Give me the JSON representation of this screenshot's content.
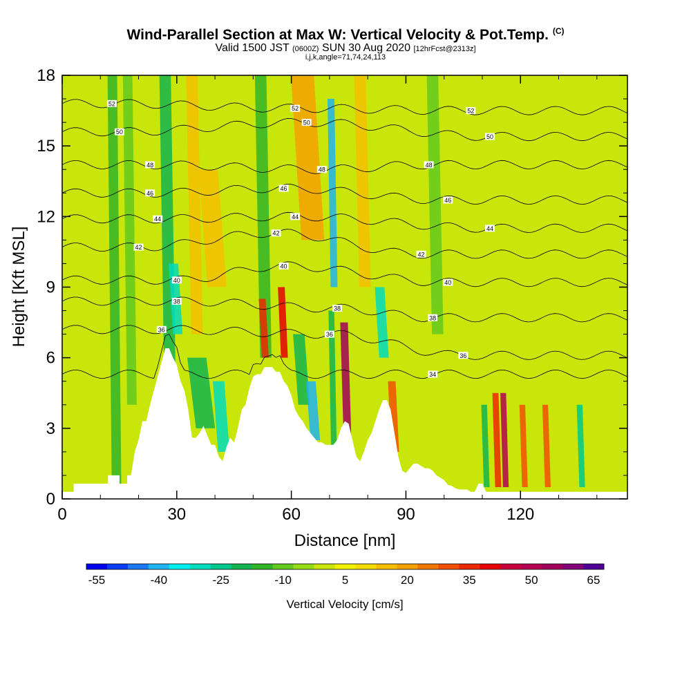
{
  "header": {
    "title": "Wind-Parallel Section at Max W: Vertical Velocity & Pot.Temp.",
    "copyright": "(C)",
    "valid_prefix": "Valid 1500 JST",
    "valid_zulu": "(0600Z)",
    "valid_date": "SUN 30 Aug 2020",
    "forecast": "[12hrFcst@2313z]",
    "indices": "i,j,k,angle=71,74,24,113"
  },
  "chart_data": {
    "type": "heatmap",
    "title": "Wind-Parallel Section at Max W: Vertical Velocity & Pot.Temp.",
    "xlabel": "Distance [nm]",
    "ylabel": "Height [Kft MSL]",
    "xlim": [
      0,
      148
    ],
    "ylim": [
      0,
      18
    ],
    "xticks": [
      0,
      30,
      60,
      90,
      120
    ],
    "yticks": [
      0,
      3,
      6,
      9,
      12,
      15,
      18
    ],
    "colorbar": {
      "label": "Vertical Velocity [cm/s]",
      "tick_labels": [
        "-55",
        "-40",
        "-25",
        "-10",
        "5",
        "20",
        "35",
        "50",
        "65"
      ],
      "colors": [
        "#0000f0",
        "#0b3cf5",
        "#1c78f5",
        "#1eb4f0",
        "#00f0f0",
        "#00dcbe",
        "#00c88c",
        "#14b450",
        "#32b428",
        "#64c81e",
        "#96dc14",
        "#c8e60a",
        "#f0f000",
        "#f5dc00",
        "#f5be00",
        "#f5a000",
        "#f07800",
        "#f05000",
        "#eb2800",
        "#e60000",
        "#c8003c",
        "#b40050",
        "#a0005a",
        "#800078",
        "#500096"
      ]
    },
    "terrain_profile": [
      [
        0,
        0.3
      ],
      [
        3,
        0.3
      ],
      [
        3,
        0.65
      ],
      [
        12,
        0.65
      ],
      [
        12,
        1.0
      ],
      [
        15,
        1.0
      ],
      [
        15,
        0.65
      ],
      [
        17,
        0.65
      ],
      [
        17,
        1.0
      ],
      [
        18,
        1.0
      ],
      [
        19,
        2.0
      ],
      [
        20,
        2.5
      ],
      [
        21,
        3.3
      ],
      [
        22,
        3.3
      ],
      [
        23,
        4.0
      ],
      [
        24,
        4.6
      ],
      [
        25,
        5.2
      ],
      [
        26,
        5.8
      ],
      [
        27,
        6.4
      ],
      [
        28,
        6.4
      ],
      [
        29,
        6.0
      ],
      [
        30,
        5.7
      ],
      [
        31,
        5.0
      ],
      [
        32,
        4.6
      ],
      [
        33,
        3.8
      ],
      [
        34,
        2.6
      ],
      [
        35,
        2.6
      ],
      [
        36,
        2.8
      ],
      [
        37,
        3.1
      ],
      [
        38,
        2.7
      ],
      [
        39,
        2.3
      ],
      [
        40,
        2.3
      ],
      [
        41,
        1.8
      ],
      [
        42,
        1.6
      ],
      [
        43,
        2.2
      ],
      [
        44,
        2.6
      ],
      [
        45,
        2.4
      ],
      [
        46,
        3.0
      ],
      [
        47,
        3.8
      ],
      [
        48,
        4.0
      ],
      [
        49,
        4.7
      ],
      [
        50,
        5.2
      ],
      [
        51,
        5.3
      ],
      [
        52,
        5.3
      ],
      [
        53,
        5.6
      ],
      [
        54,
        5.6
      ],
      [
        55,
        5.6
      ],
      [
        56,
        5.4
      ],
      [
        57,
        5.4
      ],
      [
        58,
        5.0
      ],
      [
        59,
        4.8
      ],
      [
        60,
        4.4
      ],
      [
        61,
        3.8
      ],
      [
        62,
        3.5
      ],
      [
        63,
        3.3
      ],
      [
        64,
        3.0
      ],
      [
        65,
        2.8
      ],
      [
        66,
        2.6
      ],
      [
        67,
        2.4
      ],
      [
        68,
        2.4
      ],
      [
        69,
        2.3
      ],
      [
        70,
        2.3
      ],
      [
        71,
        2.3
      ],
      [
        72,
        2.5
      ],
      [
        73,
        3.0
      ],
      [
        74,
        3.3
      ],
      [
        75,
        3.2
      ],
      [
        76,
        2.5
      ],
      [
        77,
        1.8
      ],
      [
        78,
        1.6
      ],
      [
        79,
        2.0
      ],
      [
        80,
        2.5
      ],
      [
        81,
        2.8
      ],
      [
        82,
        3.3
      ],
      [
        83,
        3.8
      ],
      [
        84,
        4.2
      ],
      [
        85,
        4.2
      ],
      [
        86,
        3.8
      ],
      [
        87,
        2.8
      ],
      [
        88,
        1.8
      ],
      [
        89,
        1.2
      ],
      [
        90,
        1.1
      ],
      [
        91,
        1.3
      ],
      [
        92,
        1.5
      ],
      [
        93,
        1.5
      ],
      [
        94,
        1.4
      ],
      [
        95,
        1.3
      ],
      [
        96,
        1.3
      ],
      [
        97,
        1.2
      ],
      [
        98,
        1.0
      ],
      [
        99,
        0.9
      ],
      [
        100,
        0.8
      ],
      [
        101,
        0.6
      ],
      [
        102,
        0.55
      ],
      [
        103,
        0.45
      ],
      [
        104,
        0.4
      ],
      [
        105,
        0.4
      ],
      [
        106,
        0.4
      ],
      [
        107,
        0.3
      ],
      [
        108,
        0.3
      ],
      [
        109,
        0.65
      ],
      [
        110,
        0.65
      ],
      [
        111,
        0.3
      ],
      [
        148,
        0.3
      ]
    ],
    "theta_contours": [
      {
        "label": "52",
        "label_at": [
          [
            13,
            16.8
          ],
          [
            61,
            16.6
          ],
          [
            107,
            16.5
          ]
        ]
      },
      {
        "label": "50",
        "label_at": [
          [
            15,
            15.6
          ],
          [
            64,
            16.0
          ],
          [
            112,
            15.4
          ]
        ]
      },
      {
        "label": "48",
        "label_at": [
          [
            23,
            14.2
          ],
          [
            68,
            14.0
          ],
          [
            96,
            14.2
          ]
        ]
      },
      {
        "label": "46",
        "label_at": [
          [
            23,
            13.0
          ],
          [
            58,
            13.2
          ],
          [
            101,
            12.7
          ]
        ]
      },
      {
        "label": "44",
        "label_at": [
          [
            25,
            11.9
          ],
          [
            61,
            12.0
          ],
          [
            112,
            11.5
          ]
        ]
      },
      {
        "label": "42",
        "label_at": [
          [
            20,
            10.7
          ],
          [
            56,
            11.3
          ],
          [
            94,
            10.4
          ]
        ]
      },
      {
        "label": "40",
        "label_at": [
          [
            30,
            9.3
          ],
          [
            58,
            9.9
          ],
          [
            101,
            9.2
          ]
        ]
      },
      {
        "label": "38",
        "label_at": [
          [
            30,
            8.4
          ],
          [
            72,
            8.1
          ],
          [
            97,
            7.7
          ]
        ]
      },
      {
        "label": "36",
        "label_at": [
          [
            26,
            7.2
          ],
          [
            70,
            7.0
          ],
          [
            105,
            6.1
          ]
        ]
      },
      {
        "label": "34",
        "label_at": [
          [
            97,
            5.3
          ]
        ]
      }
    ],
    "vertical_velocity_features": [
      {
        "x": 14,
        "w": 2.5,
        "y0": 0,
        "y1": 18,
        "value": -14
      },
      {
        "x": 18,
        "w": 2.5,
        "y0": 4,
        "y1": 18,
        "value": -10
      },
      {
        "x": 28,
        "w": 3,
        "y0": 4,
        "y1": 18,
        "value": -22
      },
      {
        "x": 30,
        "w": 2.5,
        "y0": 7,
        "y1": 10,
        "value": -28
      },
      {
        "x": 35,
        "w": 3,
        "y0": 7,
        "y1": 18,
        "value": 14
      },
      {
        "x": 40,
        "w": 5,
        "y0": 9,
        "y1": 14,
        "value": 16
      },
      {
        "x": 37,
        "w": 5,
        "y0": 3,
        "y1": 6,
        "value": -22
      },
      {
        "x": 42,
        "w": 3,
        "y0": 2,
        "y1": 5,
        "value": -28
      },
      {
        "x": 53,
        "w": 3,
        "y0": 6,
        "y1": 18,
        "value": -14
      },
      {
        "x": 53,
        "w": 1.8,
        "y0": 6,
        "y1": 8.5,
        "value": 36
      },
      {
        "x": 58,
        "w": 1.8,
        "y0": 6,
        "y1": 9,
        "value": 42
      },
      {
        "x": 63,
        "w": 3,
        "y0": 4,
        "y1": 7,
        "value": -18
      },
      {
        "x": 65,
        "w": 6,
        "y0": 11,
        "y1": 18,
        "value": 22
      },
      {
        "x": 66,
        "w": 2.5,
        "y0": 2.5,
        "y1": 5,
        "value": -40
      },
      {
        "x": 71,
        "w": 1.8,
        "y0": 9,
        "y1": 17,
        "value": -40
      },
      {
        "x": 71,
        "w": 1.5,
        "y0": 2,
        "y1": 8,
        "value": -18
      },
      {
        "x": 74.5,
        "w": 2,
        "y0": 2.5,
        "y1": 7.5,
        "value": 56
      },
      {
        "x": 79,
        "w": 3,
        "y0": 9,
        "y1": 18,
        "value": 16
      },
      {
        "x": 84,
        "w": 2.5,
        "y0": 6,
        "y1": 9,
        "value": -30
      },
      {
        "x": 87,
        "w": 2,
        "y0": 2,
        "y1": 5,
        "value": 28
      },
      {
        "x": 98,
        "w": 3,
        "y0": 7,
        "y1": 18,
        "value": -12
      },
      {
        "x": 111,
        "w": 1.5,
        "y0": 0.5,
        "y1": 4,
        "value": -20
      },
      {
        "x": 114,
        "w": 1.6,
        "y0": 0.5,
        "y1": 4.5,
        "value": 36
      },
      {
        "x": 116,
        "w": 1.5,
        "y0": 0.5,
        "y1": 4.5,
        "value": 48
      },
      {
        "x": 121,
        "w": 1.5,
        "y0": 0.5,
        "y1": 4,
        "value": 30
      },
      {
        "x": 127,
        "w": 1.5,
        "y0": 0.5,
        "y1": 4,
        "value": 30
      },
      {
        "x": 136,
        "w": 1.5,
        "y0": 0.5,
        "y1": 4,
        "value": -24
      }
    ],
    "grid": false,
    "legend": "bottom"
  }
}
